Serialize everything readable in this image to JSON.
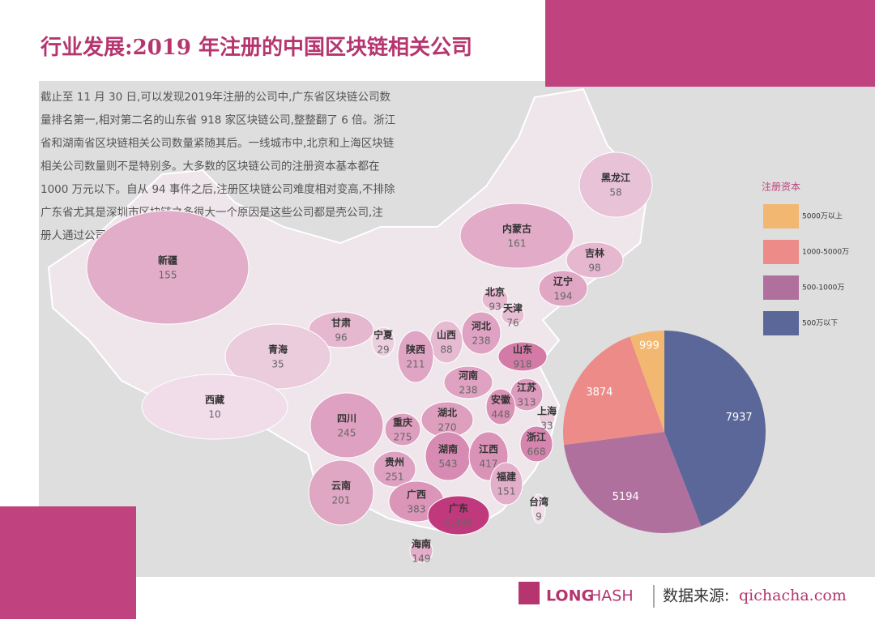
{
  "header": {
    "title": "行业发展:2019 年注册的中国区块链相关公司"
  },
  "description": [
    "截止至 11 月 30 日,可以发现2019年注册的公司中,广东省区块链公司数",
    "量排名第一,相对第二名的山东省 918 家区块链公司,整整翻了 6 倍。浙江",
    "省和湖南省区块链相关公司数量紧随其后。一线城市中,北京和上海区块链",
    "相关公司数量则不是特别多。大多数的区块链公司的注册资本基本都在",
    "1000 万元以下。自从 94 事件之后,注册区块链公司难度相对变高,不排除",
    "广东省尤其是深圳市区块链之多很大一个原因是这些公司都是壳公司,注",
    "册人通过公司转让进行获利。"
  ],
  "map": {
    "provinces": [
      {
        "name": "黑龙江",
        "value": 58
      },
      {
        "name": "内蒙古",
        "value": 161
      },
      {
        "name": "吉林",
        "value": 98
      },
      {
        "name": "新疆",
        "value": 155
      },
      {
        "name": "辽宁",
        "value": 194
      },
      {
        "name": "北京",
        "value": 93
      },
      {
        "name": "天津",
        "value": 76
      },
      {
        "name": "甘肃",
        "value": 96
      },
      {
        "name": "宁夏",
        "value": 29
      },
      {
        "name": "河北",
        "value": 238
      },
      {
        "name": "山西",
        "value": 88
      },
      {
        "name": "陕西",
        "value": 211
      },
      {
        "name": "青海",
        "value": 35
      },
      {
        "name": "山东",
        "value": 918
      },
      {
        "name": "河南",
        "value": 238
      },
      {
        "name": "江苏",
        "value": 313
      },
      {
        "name": "西藏",
        "value": 10
      },
      {
        "name": "安徽",
        "value": 448
      },
      {
        "name": "上海",
        "value": 33
      },
      {
        "name": "四川",
        "value": 245
      },
      {
        "name": "重庆",
        "value": 275
      },
      {
        "name": "湖北",
        "value": 270
      },
      {
        "name": "浙江",
        "value": 668
      },
      {
        "name": "湖南",
        "value": 543
      },
      {
        "name": "江西",
        "value": 417
      },
      {
        "name": "贵州",
        "value": 251
      },
      {
        "name": "福建",
        "value": 151
      },
      {
        "name": "云南",
        "value": 201
      },
      {
        "name": "广西",
        "value": 383
      },
      {
        "name": "广东",
        "value": 5388,
        "label": "5,388"
      },
      {
        "name": "台湾",
        "value": 9
      },
      {
        "name": "海南",
        "value": 149
      }
    ]
  },
  "chart_data": {
    "type": "pie",
    "legend_title": "注册资本",
    "categories": [
      "5000万以上",
      "1000-5000万",
      "500-1000万",
      "500万以下"
    ],
    "values": [
      999,
      3874,
      5194,
      7937
    ],
    "colors": [
      "#f2b872",
      "#ec8b87",
      "#b0709e",
      "#5b6799"
    ]
  },
  "footer": {
    "brand_a": "LONG",
    "brand_b": "HASH",
    "source_label": "数据来源:",
    "source": "qichacha.com"
  }
}
